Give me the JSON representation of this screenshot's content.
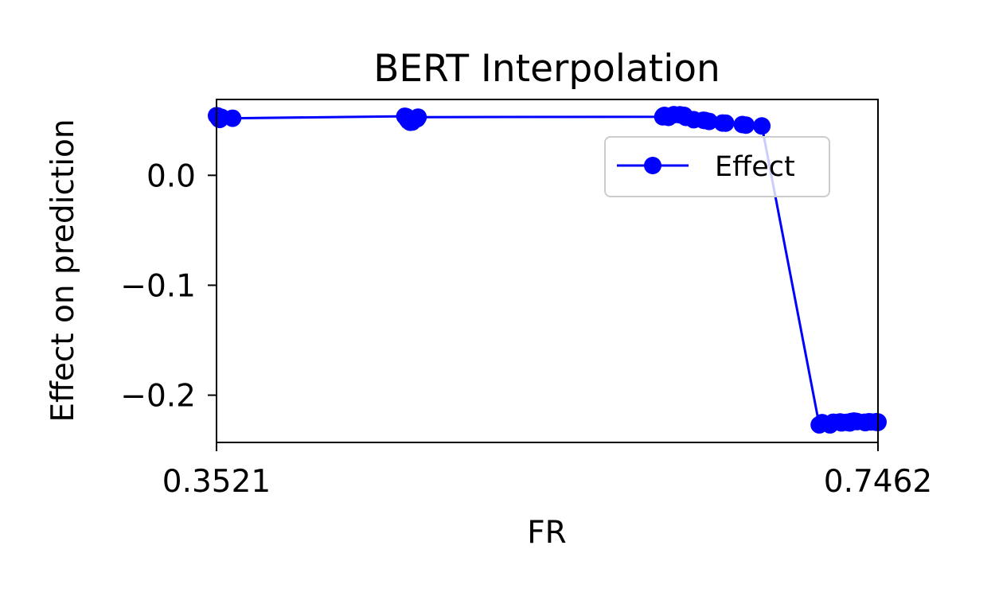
{
  "chart_data": {
    "type": "line",
    "title": "BERT Interpolation",
    "xlabel": "FR",
    "ylabel": "Effect on prediction",
    "xlim": [
      0.3521,
      0.7462
    ],
    "ylim": [
      -0.243,
      0.069
    ],
    "x_ticks": [
      0.3521,
      0.7462
    ],
    "x_tick_labels": [
      "0.3521",
      "0.7462"
    ],
    "y_ticks": [
      0.0,
      -0.1,
      -0.2
    ],
    "y_tick_labels": [
      "0.0",
      "−0.1",
      "−0.2"
    ],
    "grid": false,
    "legend_position": "upper right",
    "series": [
      {
        "name": "Effect",
        "color": "#0000ff",
        "marker": "circle",
        "x": [
          0.3521,
          0.3527,
          0.3527,
          0.353,
          0.3532,
          0.3537,
          0.354,
          0.3542,
          0.3544,
          0.3546,
          0.3551,
          0.3617,
          0.4643,
          0.4653,
          0.4657,
          0.4665,
          0.4675,
          0.4687,
          0.4716,
          0.4722,
          0.618,
          0.6184,
          0.619,
          0.6212,
          0.6214,
          0.622,
          0.6246,
          0.6282,
          0.6307,
          0.6317,
          0.6364,
          0.6422,
          0.6432,
          0.6456,
          0.6536,
          0.6554,
          0.6654,
          0.6675,
          0.677,
          0.7112,
          0.7129,
          0.7176,
          0.7196,
          0.7236,
          0.7238,
          0.7244,
          0.7274,
          0.7294,
          0.7301,
          0.7319,
          0.7337,
          0.7382,
          0.7386,
          0.7408,
          0.742,
          0.7447,
          0.7454,
          0.746,
          0.7462
        ],
        "y": [
          0.0542,
          0.054,
          0.0538,
          0.0528,
          0.0521,
          0.0511,
          0.0508,
          0.0512,
          0.052,
          0.0523,
          0.0527,
          0.0519,
          0.0537,
          0.0532,
          0.0511,
          0.0494,
          0.0483,
          0.0485,
          0.0515,
          0.0529,
          0.0532,
          0.054,
          0.0545,
          0.0535,
          0.0527,
          0.0537,
          0.0552,
          0.055,
          0.0545,
          0.0527,
          0.0506,
          0.0501,
          0.0499,
          0.049,
          0.0476,
          0.0475,
          0.0462,
          0.0457,
          0.0449,
          -0.227,
          -0.225,
          -0.227,
          -0.2246,
          -0.2243,
          -0.2245,
          -0.2252,
          -0.2247,
          -0.2253,
          -0.224,
          -0.2235,
          -0.224,
          -0.2246,
          -0.225,
          -0.2242,
          -0.2243,
          -0.2245,
          -0.2241,
          -0.2249,
          -0.2244
        ]
      }
    ]
  }
}
